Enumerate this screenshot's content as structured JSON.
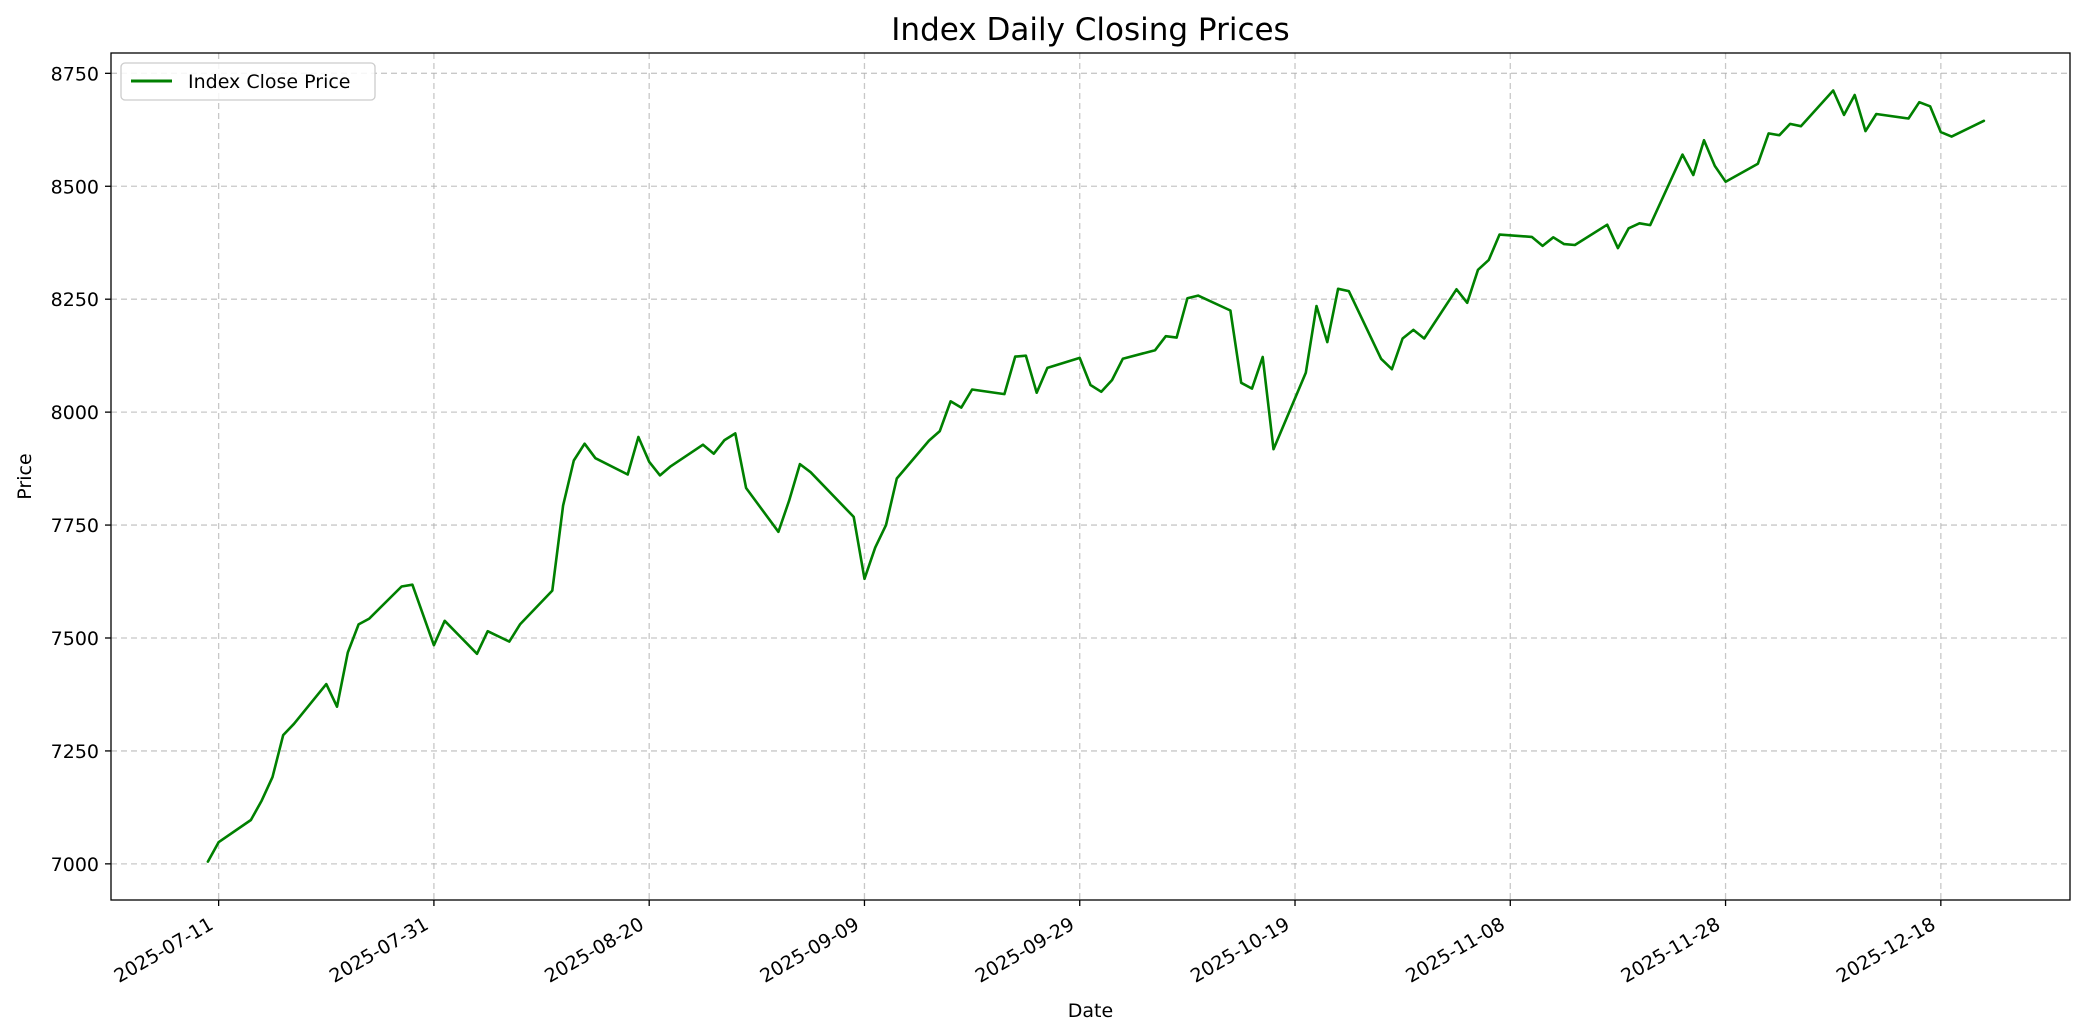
{
  "chart_data": {
    "type": "line",
    "title": "Index Daily Closing Prices",
    "xlabel": "Date",
    "ylabel": "Price",
    "x_type": "date",
    "xlim": [
      "2025-07-01",
      "2025-12-30"
    ],
    "ylim": [
      6920,
      8795
    ],
    "x_ticks": [
      "2025-07-11",
      "2025-07-31",
      "2025-08-20",
      "2025-09-09",
      "2025-09-29",
      "2025-10-19",
      "2025-11-08",
      "2025-11-28",
      "2025-12-18"
    ],
    "y_ticks": [
      7000,
      7250,
      7500,
      7750,
      8000,
      8250,
      8500,
      8750
    ],
    "grid": true,
    "legend_position": "top-left",
    "series": [
      {
        "name": "Index Close Price",
        "color": "#008000",
        "x": [
          "2025-07-10",
          "2025-07-11",
          "2025-07-14",
          "2025-07-15",
          "2025-07-16",
          "2025-07-17",
          "2025-07-18",
          "2025-07-21",
          "2025-07-22",
          "2025-07-23",
          "2025-07-24",
          "2025-07-25",
          "2025-07-28",
          "2025-07-29",
          "2025-07-31",
          "2025-08-01",
          "2025-08-04",
          "2025-08-05",
          "2025-08-07",
          "2025-08-08",
          "2025-08-11",
          "2025-08-12",
          "2025-08-13",
          "2025-08-14",
          "2025-08-15",
          "2025-08-18",
          "2025-08-19",
          "2025-08-20",
          "2025-08-21",
          "2025-08-22",
          "2025-08-25",
          "2025-08-26",
          "2025-08-27",
          "2025-08-28",
          "2025-08-29",
          "2025-09-01",
          "2025-09-02",
          "2025-09-03",
          "2025-09-04",
          "2025-09-08",
          "2025-09-09",
          "2025-09-10",
          "2025-09-11",
          "2025-09-12",
          "2025-09-15",
          "2025-09-16",
          "2025-09-17",
          "2025-09-18",
          "2025-09-19",
          "2025-09-22",
          "2025-09-23",
          "2025-09-24",
          "2025-09-25",
          "2025-09-26",
          "2025-09-29",
          "2025-09-30",
          "2025-10-01",
          "2025-10-02",
          "2025-10-03",
          "2025-10-06",
          "2025-10-07",
          "2025-10-08",
          "2025-10-09",
          "2025-10-10",
          "2025-10-13",
          "2025-10-14",
          "2025-10-15",
          "2025-10-16",
          "2025-10-17",
          "2025-10-20",
          "2025-10-21",
          "2025-10-22",
          "2025-10-23",
          "2025-10-24",
          "2025-10-27",
          "2025-10-28",
          "2025-10-29",
          "2025-10-30",
          "2025-10-31",
          "2025-11-03",
          "2025-11-04",
          "2025-11-05",
          "2025-11-06",
          "2025-11-07",
          "2025-11-10",
          "2025-11-11",
          "2025-11-12",
          "2025-11-13",
          "2025-11-14",
          "2025-11-17",
          "2025-11-18",
          "2025-11-19",
          "2025-11-20",
          "2025-11-21",
          "2025-11-24",
          "2025-11-25",
          "2025-11-26",
          "2025-11-27",
          "2025-11-28",
          "2025-12-01",
          "2025-12-02",
          "2025-12-03",
          "2025-12-04",
          "2025-12-05",
          "2025-12-08",
          "2025-12-09",
          "2025-12-10",
          "2025-12-11",
          "2025-12-12",
          "2025-12-15",
          "2025-12-16",
          "2025-12-17",
          "2025-12-18",
          "2025-12-19",
          "2025-12-22"
        ],
        "values": [
          7005,
          7048,
          7097,
          7140,
          7192,
          7285,
          7310,
          7398,
          7348,
          7468,
          7530,
          7543,
          7614,
          7618,
          7484,
          7538,
          7465,
          7515,
          7492,
          7530,
          7605,
          7793,
          7893,
          7930,
          7898,
          7862,
          7945,
          7890,
          7860,
          7880,
          7928,
          7908,
          7938,
          7953,
          7832,
          7735,
          7804,
          7885,
          7867,
          7768,
          7631,
          7700,
          7750,
          7853,
          7937,
          7958,
          8024,
          8010,
          8050,
          8040,
          8123,
          8125,
          8043,
          8098,
          8120,
          8060,
          8045,
          8071,
          8118,
          8137,
          8168,
          8165,
          8252,
          8258,
          8225,
          8065,
          8052,
          8122,
          7918,
          8087,
          8235,
          8155,
          8273,
          8268,
          8118,
          8095,
          8163,
          8182,
          8163,
          8272,
          8242,
          8315,
          8337,
          8393,
          8388,
          8368,
          8387,
          8372,
          8370,
          8415,
          8363,
          8407,
          8418,
          8414,
          8570,
          8525,
          8602,
          8545,
          8510,
          8550,
          8617,
          8613,
          8638,
          8633,
          8712,
          8658,
          8702,
          8622,
          8660,
          8650,
          8686,
          8677,
          8620,
          8610,
          8645
        ]
      }
    ]
  }
}
